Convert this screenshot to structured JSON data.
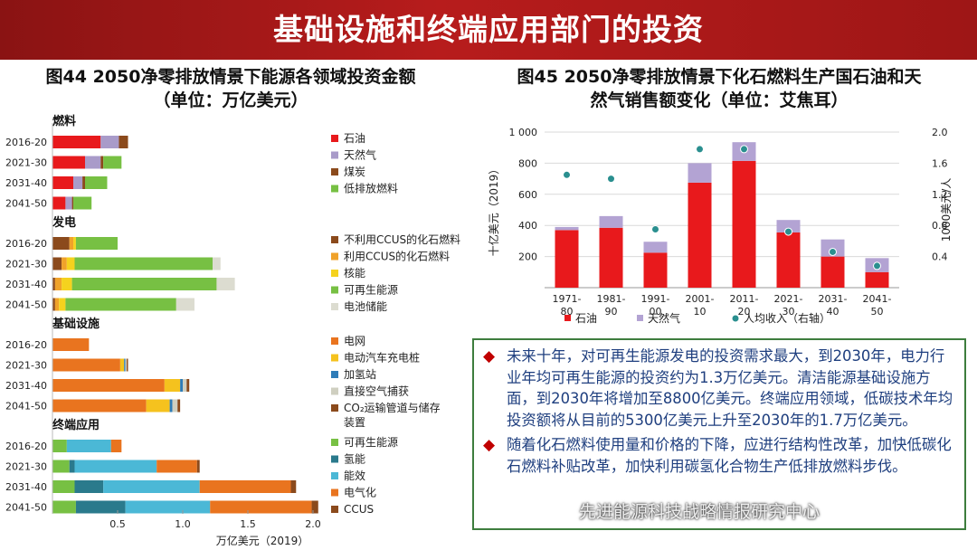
{
  "header": {
    "title": "基础设施和终端应用部门的投资"
  },
  "watermark": "先进能源科技战略情报研究中心",
  "colors": {
    "header": "#b71c1c",
    "textbox_border": "#3e7d3e",
    "body_text": "#1f3f7f",
    "bullet": "#c00000"
  },
  "fig44": {
    "title_line1": "图44 2050净零排放情景下能源各领域投资金额",
    "title_line2": "（单位：万亿美元）"
  },
  "fig45": {
    "title_line1": "图45 2050净零排放情景下化石燃料生产国石油和天",
    "title_line2": "然气销售额变化（单位：艾焦耳）"
  },
  "textbox": {
    "bullets": [
      "未来十年，对可再生能源发电的投资需求最大，到2030年，电力行业年均可再生能源的投资约为1.3万亿美元。清洁能源基础设施方面，到2030年将增加至8800亿美元。终端应用领域，低碳技术年均投资额将从目前的5300亿美元上升至2030年的1.7万亿美元。",
      "随着化石燃料使用量和价格的下降，应进行结构性改革，加快低碳化石燃料补贴改革，加快利用碳氢化合物生产低排放燃料步伐。"
    ]
  },
  "chart_data": [
    {
      "type": "bar",
      "orientation": "horizontal",
      "stacked": true,
      "xlabel": "万亿美元（2019）",
      "xticks": [
        "0.5",
        "1.0",
        "1.5",
        "2.0"
      ],
      "xlim": [
        0,
        2.0
      ],
      "groups": [
        {
          "name": "燃料",
          "categories": [
            "2016-20",
            "2021-30",
            "2031-40",
            "2041-50"
          ],
          "series": [
            {
              "name": "石油",
              "color": "#e8191c",
              "values": [
                0.37,
                0.25,
                0.16,
                0.1
              ]
            },
            {
              "name": "天然气",
              "color": "#a99bc9",
              "values": [
                0.14,
                0.12,
                0.07,
                0.05
              ]
            },
            {
              "name": "煤炭",
              "color": "#8b4a1c",
              "values": [
                0.07,
                0.02,
                0.02,
                0.01
              ]
            },
            {
              "name": "低排放燃料",
              "color": "#77c043",
              "values": [
                0.0,
                0.14,
                0.17,
                0.14
              ]
            }
          ]
        },
        {
          "name": "发电",
          "categories": [
            "2016-20",
            "2021-30",
            "2031-40",
            "2041-50"
          ],
          "series": [
            {
              "name": "不利用CCUS的化石燃料",
              "color": "#8b4a1c",
              "values": [
                0.13,
                0.07,
                0.02,
                0.02
              ]
            },
            {
              "name": "利用CCUS的化石燃料",
              "color": "#f0a22a",
              "values": [
                0.03,
                0.04,
                0.05,
                0.03
              ]
            },
            {
              "name": "核能",
              "color": "#f5d21e",
              "values": [
                0.02,
                0.06,
                0.08,
                0.05
              ]
            },
            {
              "name": "可再生能源",
              "color": "#77c043",
              "values": [
                0.32,
                1.06,
                1.11,
                0.85
              ]
            },
            {
              "name": "电池储能",
              "color": "#dcdcd0",
              "values": [
                0.0,
                0.06,
                0.14,
                0.14
              ]
            }
          ]
        },
        {
          "name": "基础设施",
          "categories": [
            "2016-20",
            "2021-30",
            "2031-40",
            "2041-50"
          ],
          "series": [
            {
              "name": "电网",
              "color": "#e9741f",
              "values": [
                0.28,
                0.52,
                0.86,
                0.72
              ]
            },
            {
              "name": "电动汽车充电桩",
              "color": "#f5c21e",
              "values": [
                0.0,
                0.03,
                0.12,
                0.18
              ]
            },
            {
              "name": "加氢站",
              "color": "#2e7cb8",
              "values": [
                0.0,
                0.01,
                0.02,
                0.02
              ]
            },
            {
              "name": "直接空气捕获",
              "color": "#cfcfc0",
              "values": [
                0.0,
                0.01,
                0.03,
                0.04
              ]
            },
            {
              "name": "CO₂运输管道与储存装置",
              "color": "#8b4a1c",
              "values": [
                0.0,
                0.01,
                0.02,
                0.02
              ]
            }
          ]
        },
        {
          "name": "终端应用",
          "categories": [
            "2016-20",
            "2021-30",
            "2031-40",
            "2041-50"
          ],
          "series": [
            {
              "name": "可再生能源",
              "color": "#77c043",
              "values": [
                0.11,
                0.13,
                0.17,
                0.18
              ]
            },
            {
              "name": "氢能",
              "color": "#2a7a8c",
              "values": [
                0.0,
                0.04,
                0.22,
                0.38
              ]
            },
            {
              "name": "能效",
              "color": "#4bb8d6",
              "values": [
                0.34,
                0.63,
                0.74,
                0.65
              ]
            },
            {
              "name": "电气化",
              "color": "#e9741f",
              "values": [
                0.08,
                0.31,
                0.7,
                0.78
              ]
            },
            {
              "name": "CCUS",
              "color": "#8b4a1c",
              "values": [
                0.0,
                0.02,
                0.04,
                0.05
              ]
            }
          ]
        }
      ]
    },
    {
      "type": "bar",
      "stacked": true,
      "secondary_axis": "scatter",
      "categories": [
        "1971-80",
        "1981-90",
        "1991-00",
        "2001-10",
        "2011-20",
        "2021-30",
        "2031-40",
        "2041-50"
      ],
      "ylabel": "十亿美元（2019）",
      "ylim": [
        0,
        1000
      ],
      "yticks": [
        "200",
        "400",
        "600",
        "800",
        "1 000"
      ],
      "y2label": "1000美元/人",
      "y2lim": [
        0,
        2.0
      ],
      "y2ticks": [
        "0.4",
        "0.8",
        "1.2",
        "1.6",
        "2.0"
      ],
      "series": [
        {
          "name": "石油",
          "color": "#e8191c",
          "values": [
            370,
            385,
            225,
            675,
            815,
            355,
            200,
            100
          ]
        },
        {
          "name": "天然气",
          "color": "#b3a3d3",
          "values": [
            20,
            75,
            70,
            125,
            120,
            80,
            110,
            90
          ]
        }
      ],
      "secondary_series": {
        "name": "人均收入（右轴）",
        "color": "#2a8f8f",
        "values": [
          1.45,
          1.4,
          0.75,
          1.78,
          1.78,
          0.72,
          0.46,
          0.28
        ]
      }
    }
  ]
}
